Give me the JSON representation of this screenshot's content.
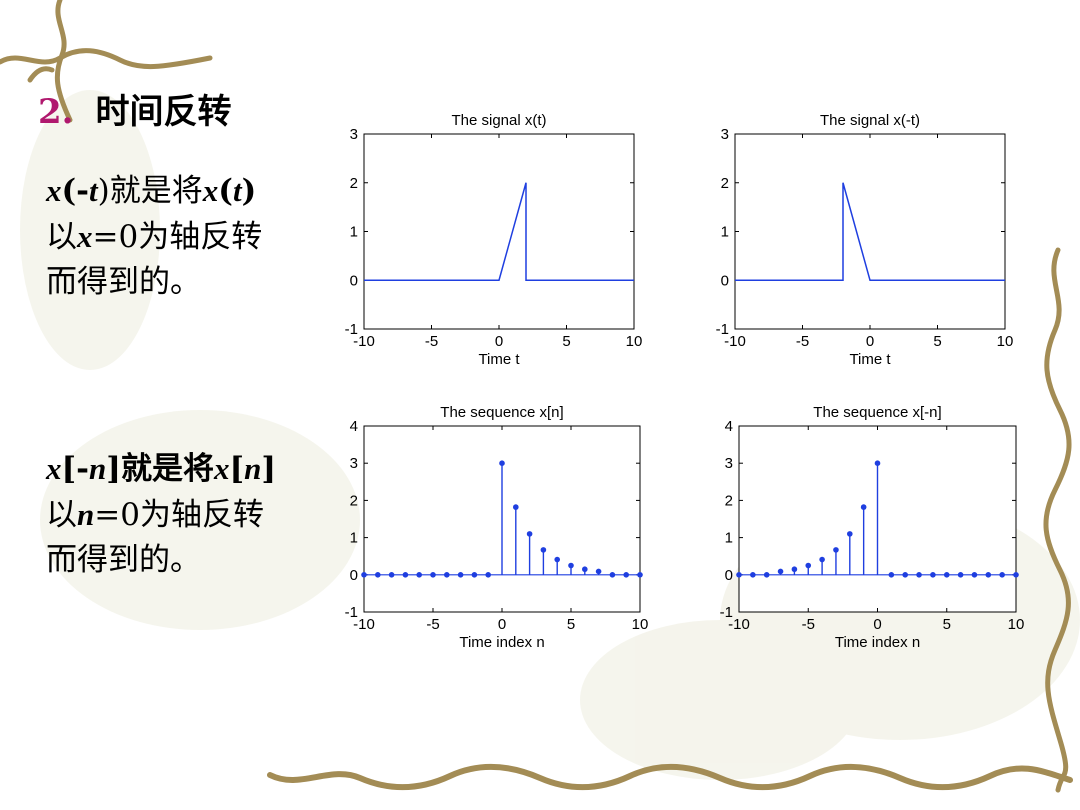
{
  "slide": {
    "heading_num": "2.",
    "heading_text": "时间反转",
    "para1_lines": [
      {
        "pre_b": "x",
        "pre_t": "(-",
        "mid_b": "t",
        "post_t": ")就是将",
        "b2": "x",
        "t2": "(",
        "b3": "t",
        "t3": ")"
      },
      {
        "text_a": "以",
        "b": "x",
        "text_b": "=0为轴反转"
      },
      {
        "text": "而得到的。"
      }
    ],
    "para2_lines": [
      {
        "b1": "x",
        "t1": "[-",
        "b2": "n",
        "t2": "]就是将",
        "b3": "x",
        "t3": "[",
        "b4": "n",
        "t4": "]"
      },
      {
        "text_a": "以",
        "b": "n",
        "text_b": "=0为轴反转"
      },
      {
        "text": "而得到的。"
      }
    ]
  },
  "colors": {
    "line": "#1f3fe0",
    "heading_num": "#b0186e",
    "vine": "#a38c55"
  },
  "chart_data": [
    {
      "type": "line",
      "title": "The signal x(t)",
      "xlabel": "Time t",
      "ylabel": "",
      "xlim": [
        -10,
        10
      ],
      "ylim": [
        -1,
        3
      ],
      "xticks": [
        -10,
        -5,
        0,
        5,
        10
      ],
      "yticks": [
        -1,
        0,
        1,
        2,
        3
      ],
      "x": [
        -10,
        0,
        2,
        2,
        10
      ],
      "y": [
        0,
        0,
        2,
        0,
        0
      ]
    },
    {
      "type": "line",
      "title": "The signal x(-t)",
      "xlabel": "Time t",
      "ylabel": "",
      "xlim": [
        -10,
        10
      ],
      "ylim": [
        -1,
        3
      ],
      "xticks": [
        -10,
        -5,
        0,
        5,
        10
      ],
      "yticks": [
        -1,
        0,
        1,
        2,
        3
      ],
      "x": [
        -10,
        -2,
        -2,
        0,
        10
      ],
      "y": [
        0,
        0,
        2,
        0,
        0
      ]
    },
    {
      "type": "scatter",
      "style": "stem",
      "title": "The sequence x[n]",
      "xlabel": "Time index n",
      "ylabel": "",
      "xlim": [
        -10,
        10
      ],
      "ylim": [
        -1,
        4
      ],
      "xticks": [
        -10,
        -5,
        0,
        5,
        10
      ],
      "yticks": [
        -1,
        0,
        1,
        2,
        3,
        4
      ],
      "x": [
        -10,
        -9,
        -8,
        -7,
        -6,
        -5,
        -4,
        -3,
        -2,
        -1,
        0,
        1,
        2,
        3,
        4,
        5,
        6,
        7,
        8,
        9,
        10
      ],
      "y": [
        0,
        0,
        0,
        0,
        0,
        0,
        0,
        0,
        0,
        0,
        3.0,
        1.82,
        1.1,
        0.67,
        0.41,
        0.25,
        0.15,
        0.09,
        0,
        0,
        0
      ]
    },
    {
      "type": "scatter",
      "style": "stem",
      "title": "The sequence x[-n]",
      "xlabel": "Time index n",
      "ylabel": "",
      "xlim": [
        -10,
        10
      ],
      "ylim": [
        -1,
        4
      ],
      "xticks": [
        -10,
        -5,
        0,
        5,
        10
      ],
      "yticks": [
        -1,
        0,
        1,
        2,
        3,
        4
      ],
      "x": [
        -10,
        -9,
        -8,
        -7,
        -6,
        -5,
        -4,
        -3,
        -2,
        -1,
        0,
        1,
        2,
        3,
        4,
        5,
        6,
        7,
        8,
        9,
        10
      ],
      "y": [
        0,
        0,
        0,
        0.09,
        0.15,
        0.25,
        0.41,
        0.67,
        1.1,
        1.82,
        3.0,
        0,
        0,
        0,
        0,
        0,
        0,
        0,
        0,
        0,
        0
      ]
    }
  ]
}
